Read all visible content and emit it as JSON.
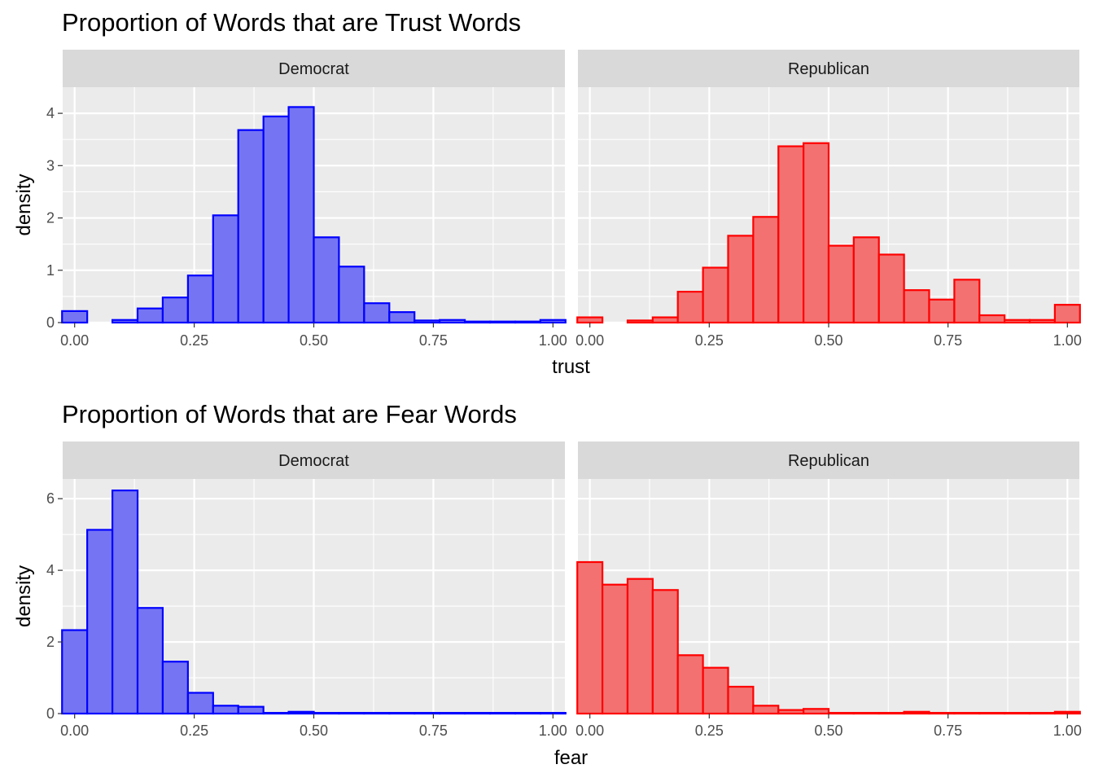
{
  "chart_data": [
    {
      "type": "bar",
      "title": "Proportion of Words that are Trust Words",
      "xlabel": "trust",
      "ylabel": "density",
      "xlim": [
        -0.025,
        1.025
      ],
      "ylim": [
        0,
        4.5
      ],
      "xticks": [
        0,
        0.25,
        0.5,
        0.75,
        1
      ],
      "xtick_labels": [
        "0.00",
        "0.25",
        "0.50",
        "0.75",
        "1.00"
      ],
      "yticks": [
        0,
        1,
        2,
        3,
        4
      ],
      "ytick_labels": [
        "0",
        "1",
        "2",
        "3",
        "4"
      ],
      "bin_width": 0.05263,
      "bin_centers": [
        0,
        0.0526,
        0.1053,
        0.1579,
        0.2105,
        0.2632,
        0.3158,
        0.3684,
        0.4211,
        0.4737,
        0.5263,
        0.5789,
        0.6316,
        0.6842,
        0.7368,
        0.7895,
        0.8421,
        0.8947,
        0.9474,
        1.0
      ],
      "grid": true,
      "legend": "none",
      "series": [
        {
          "panel": "Democrat",
          "fill": "#7575f4",
          "stroke": "#0000ff",
          "values": [
            0.22,
            0.0,
            0.05,
            0.27,
            0.48,
            0.9,
            2.05,
            3.68,
            3.94,
            4.12,
            1.63,
            1.07,
            0.37,
            0.2,
            0.04,
            0.05,
            0.02,
            0.02,
            0.02,
            0.05
          ]
        },
        {
          "panel": "Republican",
          "fill": "#f37171",
          "stroke": "#ff0000",
          "values": [
            0.1,
            0.0,
            0.04,
            0.1,
            0.59,
            1.05,
            1.66,
            2.02,
            3.37,
            3.43,
            1.47,
            1.63,
            1.3,
            0.62,
            0.44,
            0.82,
            0.14,
            0.05,
            0.05,
            0.34
          ]
        }
      ]
    },
    {
      "type": "bar",
      "title": "Proportion of Words that are Fear Words",
      "xlabel": "fear",
      "ylabel": "density",
      "xlim": [
        -0.025,
        1.025
      ],
      "ylim": [
        0,
        6.55
      ],
      "xticks": [
        0,
        0.25,
        0.5,
        0.75,
        1
      ],
      "xtick_labels": [
        "0.00",
        "0.25",
        "0.50",
        "0.75",
        "1.00"
      ],
      "yticks": [
        0,
        2,
        4,
        6
      ],
      "ytick_labels": [
        "0",
        "2",
        "4",
        "6"
      ],
      "bin_width": 0.05263,
      "bin_centers": [
        0,
        0.0526,
        0.1053,
        0.1579,
        0.2105,
        0.2632,
        0.3158,
        0.3684,
        0.4211,
        0.4737,
        0.5263,
        0.5789,
        0.6316,
        0.6842,
        0.7368,
        0.7895,
        0.8421,
        0.8947,
        0.9474,
        1.0
      ],
      "grid": true,
      "legend": "none",
      "series": [
        {
          "panel": "Democrat",
          "fill": "#7575f4",
          "stroke": "#0000ff",
          "values": [
            2.33,
            5.13,
            6.23,
            2.95,
            1.45,
            0.58,
            0.22,
            0.19,
            0.02,
            0.05,
            0.02,
            0.02,
            0.02,
            0.02,
            0.02,
            0.02,
            0.02,
            0.02,
            0.02,
            0.02
          ]
        },
        {
          "panel": "Republican",
          "fill": "#f37171",
          "stroke": "#ff0000",
          "values": [
            4.23,
            3.6,
            3.76,
            3.45,
            1.63,
            1.28,
            0.75,
            0.22,
            0.1,
            0.13,
            0.02,
            0.02,
            0.02,
            0.05,
            0.02,
            0.02,
            0.02,
            0.02,
            0.02,
            0.05
          ]
        }
      ]
    }
  ]
}
